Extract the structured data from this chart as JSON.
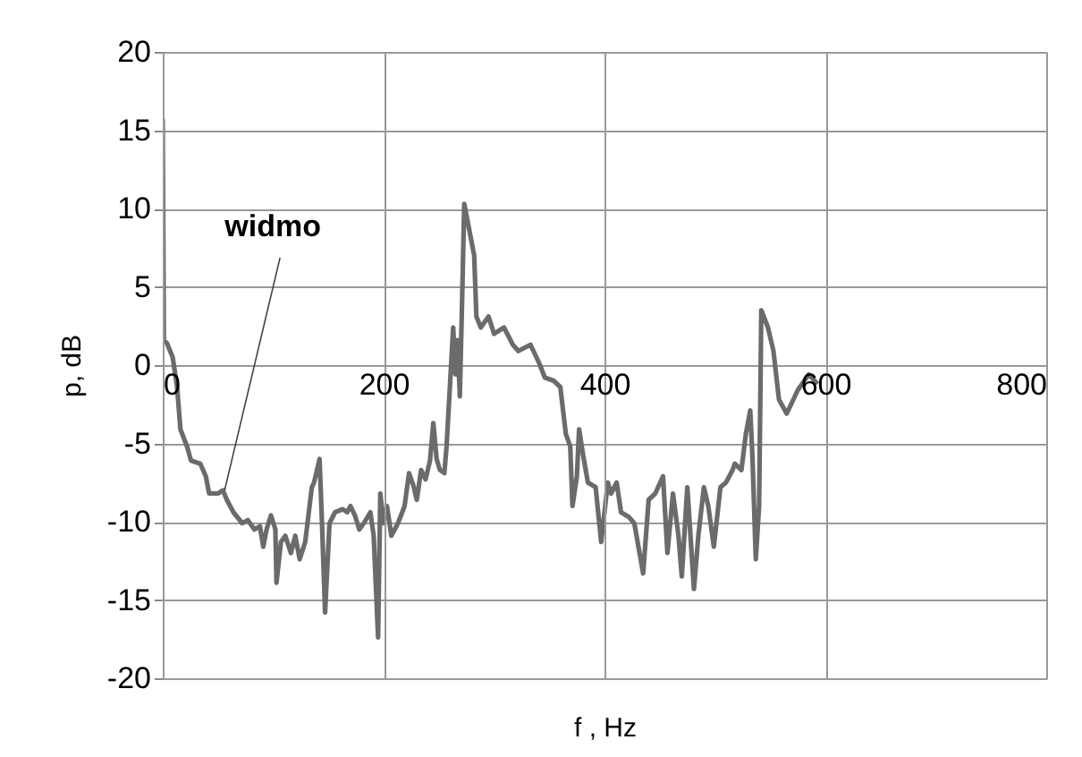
{
  "chart_data": {
    "type": "line",
    "xlabel": "f , Hz",
    "ylabel": "p, dB",
    "xlim": [
      0,
      800
    ],
    "xticks": [
      0,
      200,
      400,
      600,
      800
    ],
    "ylim": [
      -20,
      20
    ],
    "yticks": [
      -20,
      -15,
      -10,
      -5,
      0,
      5,
      10,
      15,
      20
    ],
    "grid": true,
    "marker": "none",
    "line_style": "solid",
    "annotations": [
      {
        "text": "widmo",
        "x": 56,
        "y": -8
      }
    ],
    "series": [
      {
        "color": "#6b6b6b",
        "x": [
          0,
          1,
          3.8,
          9,
          13,
          16,
          22,
          25.6,
          34,
          39,
          42,
          50,
          54.5,
          58,
          64,
          72,
          77,
          83,
          88,
          91,
          94,
          98,
          102,
          103,
          107,
          111,
          116,
          120,
          124,
          129,
          135,
          137,
          142,
          144,
          147,
          151,
          156,
          163,
          167,
          170,
          174,
          178,
          182,
          188,
          191,
          195,
          197,
          200,
          203,
          207,
          213,
          219,
          223,
          227,
          230,
          234,
          238,
          242,
          245,
          248,
          251,
          255,
          257,
          260,
          263,
          265,
          267,
          269,
          271,
          273,
          276,
          282,
          284,
          288,
          295,
          300,
          309,
          317,
          322,
          333,
          341,
          346,
          354,
          360,
          365,
          369,
          371,
          375,
          377,
          381,
          385,
          392,
          397,
          403,
          406,
          411,
          415,
          422,
          427,
          435,
          440,
          446,
          453,
          457,
          462,
          467,
          470,
          475,
          481,
          485,
          490,
          494,
          499,
          505,
          510,
          516,
          518,
          524,
          528,
          532,
          534,
          537,
          540,
          542,
          548,
          553,
          558,
          565,
          575,
          585,
          593
        ],
        "values": [
          15.7,
          1.6,
          1.4,
          0.5,
          -1.4,
          -4.1,
          -5.2,
          -6.1,
          -6.3,
          -7.1,
          -8.2,
          -8.2,
          -8.0,
          -8.6,
          -9.4,
          -10.1,
          -9.9,
          -10.5,
          -10.3,
          -11.6,
          -10.5,
          -9.6,
          -10.5,
          -13.9,
          -11.3,
          -10.9,
          -12.0,
          -10.9,
          -12.4,
          -11.3,
          -7.8,
          -7.5,
          -6.0,
          -9.7,
          -15.8,
          -10.1,
          -9.4,
          -9.2,
          -9.4,
          -9.0,
          -9.6,
          -10.5,
          -10.1,
          -9.4,
          -10.9,
          -17.4,
          -8.2,
          -10.1,
          -9.0,
          -10.9,
          -10.1,
          -9.0,
          -6.9,
          -7.7,
          -8.6,
          -6.7,
          -7.3,
          -6.1,
          -3.7,
          -6.0,
          -6.7,
          -6.9,
          -5.2,
          -1.4,
          2.4,
          -0.6,
          1.6,
          -2.0,
          3.9,
          10.3,
          9.2,
          7.0,
          3.1,
          2.4,
          3.1,
          2.0,
          2.4,
          1.3,
          0.9,
          1.3,
          0.1,
          -0.8,
          -1.0,
          -1.4,
          -4.4,
          -5.2,
          -9.0,
          -7.1,
          -4.1,
          -5.9,
          -7.5,
          -7.8,
          -11.3,
          -7.5,
          -8.2,
          -7.5,
          -9.4,
          -9.7,
          -10.1,
          -13.3,
          -8.6,
          -8.2,
          -7.1,
          -12.0,
          -8.2,
          -10.9,
          -13.5,
          -7.8,
          -14.3,
          -10.9,
          -7.8,
          -9.0,
          -11.6,
          -7.8,
          -7.5,
          -6.7,
          -6.3,
          -6.7,
          -4.4,
          -2.9,
          -5.9,
          -12.4,
          -9.0,
          3.5,
          2.4,
          0.9,
          -2.2,
          -3.1,
          -1.6,
          -0.6,
          -1.2
        ]
      }
    ]
  }
}
